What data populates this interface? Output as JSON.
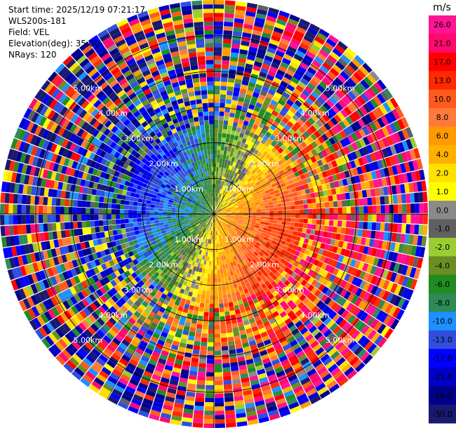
{
  "header": {
    "start_time": "Start time: 2025/12/19 07:21:17",
    "site": "WLS200s-181",
    "field": "Field: VEL",
    "elevation": "Elevation(deg): 35.00",
    "nrays": "NRays: 120"
  },
  "chart_data": {
    "type": "heatmap",
    "projection": "polar-ppi",
    "field": "VEL",
    "elevation_deg": 35.0,
    "n_rays": 120,
    "max_range_km": 6.0,
    "range_rings_km": [
      1.0,
      2.0,
      3.0,
      4.0,
      5.0
    ],
    "ring_labels": [
      "1.00km",
      "2.00km",
      "3.00km",
      "4.00km",
      "5.00km"
    ],
    "spoke_angles_deg": [
      0,
      30,
      60,
      90,
      120,
      150,
      180,
      210,
      240,
      270,
      300,
      330
    ],
    "velocity_pattern": {
      "description_source": "visible: receding (warm) flow to east/south-east, approaching (cool) flow to west/north-west, noisy far ranges",
      "positive_max_ms": 26.0,
      "negative_min_ms": -30.0
    },
    "colorbar": {
      "unit": "m/s",
      "ticks": [
        "26.0",
        "21.0",
        "17.0",
        "13.0",
        "10.0",
        "8.0",
        "6.0",
        "4.0",
        "2.0",
        "1.0",
        "0.0",
        "-1.0",
        "-2.0",
        "-4.0",
        "-6.0",
        "-8.0",
        "-10.0",
        "-13.0",
        "-17.0",
        "-21.0",
        "-26.0",
        "-30.0"
      ],
      "colors": [
        "#ff1493",
        "#ff0a6e",
        "#ff0000",
        "#ff2a00",
        "#ff5a1e",
        "#ff7a3a",
        "#ff9a00",
        "#ffb000",
        "#ffe000",
        "#ffff00",
        "#8a8a8a",
        "#606060",
        "#9acd32",
        "#6b8e23",
        "#228b22",
        "#2e8b57",
        "#1e90ff",
        "#2f4fdc",
        "#0000ff",
        "#0000c8",
        "#00008b",
        "#191970"
      ]
    }
  }
}
